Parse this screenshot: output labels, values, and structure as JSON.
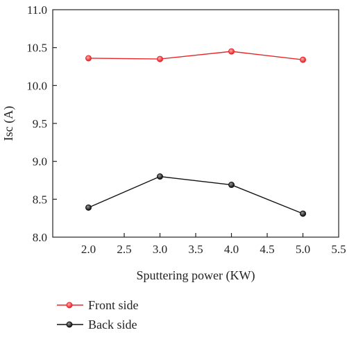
{
  "chart_data": {
    "type": "line",
    "xlabel": "Sputtering power (KW)",
    "ylabel": "Isc (A)",
    "xlim": [
      1.5,
      5.5
    ],
    "ylim": [
      8.0,
      11.0
    ],
    "xticks": [
      "2.0",
      "2.5",
      "3.0",
      "3.5",
      "4.0",
      "4.5",
      "5.0",
      "5.5"
    ],
    "yticks": [
      "8.0",
      "8.5",
      "9.0",
      "9.5",
      "10.0",
      "10.5",
      "11.0"
    ],
    "grid": false,
    "legend_position": "bottom-left",
    "series": [
      {
        "name": "Front side",
        "color": "#e8262a",
        "marker": "circle",
        "x": [
          2.0,
          3.0,
          4.0,
          5.0
        ],
        "y": [
          10.36,
          10.35,
          10.45,
          10.34
        ]
      },
      {
        "name": "Back side",
        "color": "#111111",
        "marker": "circle",
        "x": [
          2.0,
          3.0,
          4.0,
          5.0
        ],
        "y": [
          8.39,
          8.8,
          8.69,
          8.31
        ]
      }
    ]
  }
}
